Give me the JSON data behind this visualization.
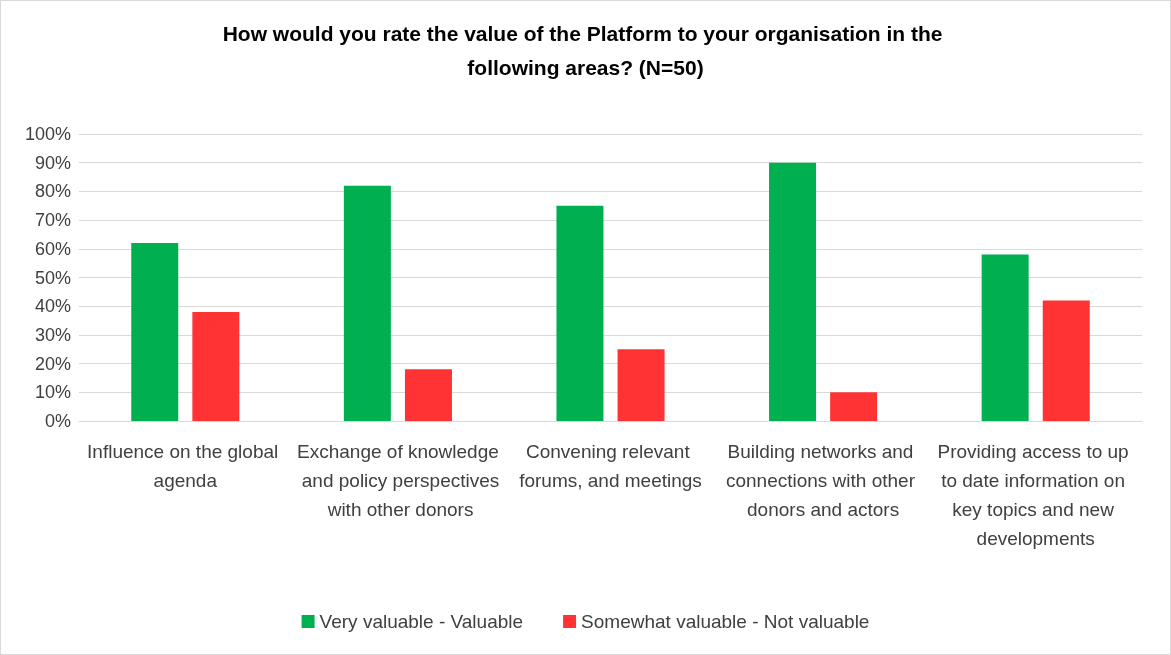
{
  "chart_data": {
    "type": "bar",
    "title": "How would you rate the value of the Platform to your organisation in the following areas? (N=50)",
    "categories": [
      "Influence on the global agenda",
      "Exchange of knowledge and policy perspectives with other donors",
      "Convening relevant forums, and meetings",
      "Building networks and connections with other donors and actors",
      "Providing access to up to date information on key topics and new developments"
    ],
    "series": [
      {
        "name": "Very valuable - Valuable",
        "color": "#00b050",
        "values": [
          62,
          82,
          75,
          90,
          58
        ]
      },
      {
        "name": "Somewhat valuable - Not valuable",
        "color": "#ff3333",
        "values": [
          38,
          18,
          25,
          10,
          42
        ]
      }
    ],
    "ylim": [
      0,
      100
    ],
    "yticks": [
      {
        "value": 0,
        "label": "0%"
      },
      {
        "value": 10,
        "label": "10%"
      },
      {
        "value": 20,
        "label": "20%"
      },
      {
        "value": 30,
        "label": "30%"
      },
      {
        "value": 40,
        "label": "40%"
      },
      {
        "value": 50,
        "label": "50%"
      },
      {
        "value": 60,
        "label": "60%"
      },
      {
        "value": 70,
        "label": "70%"
      },
      {
        "value": 80,
        "label": "80%"
      },
      {
        "value": 90,
        "label": "90%"
      },
      {
        "value": 100,
        "label": "100%"
      }
    ],
    "grid": "y",
    "legend": "bottom"
  }
}
